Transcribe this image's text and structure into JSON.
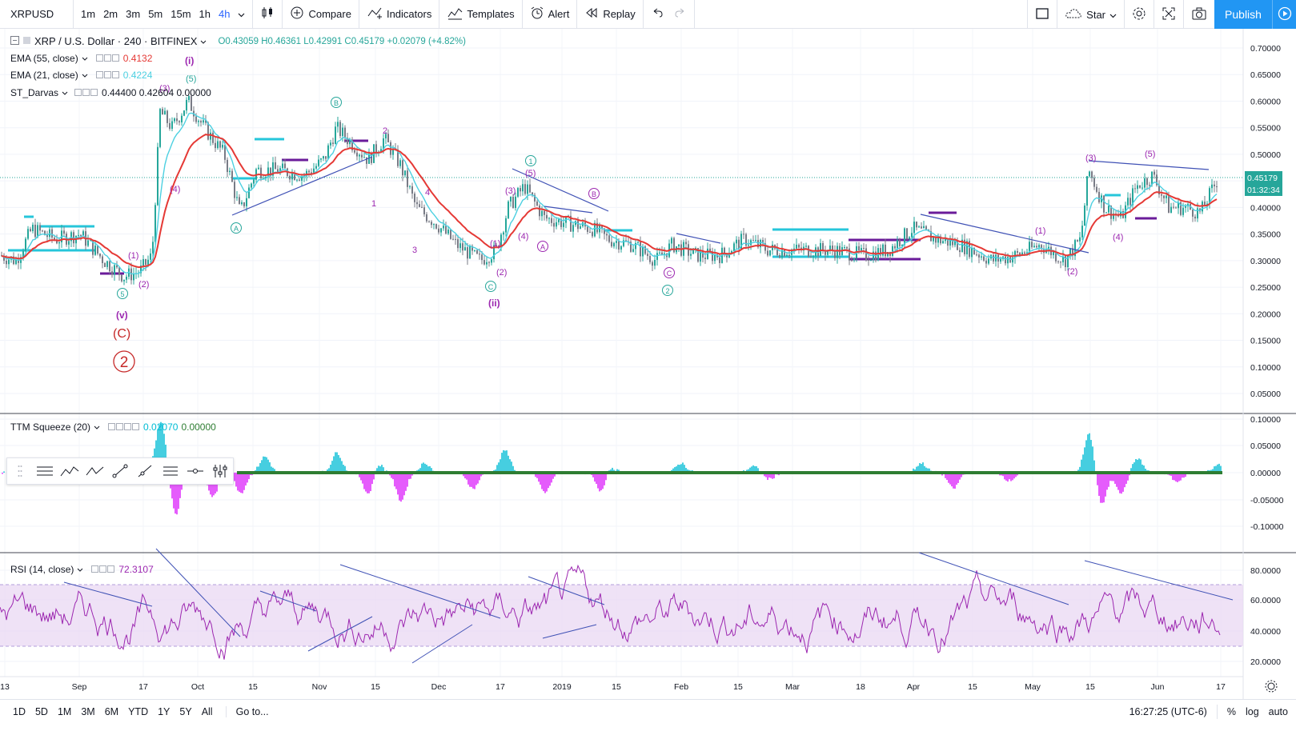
{
  "toolbar": {
    "symbol": "XRPUSD",
    "intervals": [
      "1m",
      "2m",
      "3m",
      "5m",
      "15m",
      "1h",
      "4h"
    ],
    "active_interval": "4h",
    "compare_label": "Compare",
    "indicators_label": "Indicators",
    "templates_label": "Templates",
    "alert_label": "Alert",
    "replay_label": "Replay",
    "star_label": "Star",
    "publish_label": "Publish"
  },
  "main_legend": {
    "title": "XRP / U.S. Dollar · 240 · BITFINEX",
    "ohlc": "O0.43059  H0.46361  L0.42991  C0.45179  +0.02079 (+4.82%)",
    "ema55_name": "EMA (55, close)",
    "ema55_value": "0.4132",
    "ema21_name": "EMA (21, close)",
    "ema21_value": "0.4224",
    "darvas_name": "ST_Darvas",
    "darvas_values": "0.44400  0.42604  0.00000"
  },
  "ttm_legend": {
    "name": "TTM Squeeze (20)",
    "v1": "0.02070",
    "v2": "0.00000"
  },
  "rsi_legend": {
    "name": "RSI (14, close)",
    "value": "72.3107"
  },
  "price_scale": [
    "0.70000",
    "0.65000",
    "0.60000",
    "0.55000",
    "0.50000",
    "0.45000",
    "0.40000",
    "0.35000",
    "0.30000",
    "0.25000",
    "0.20000",
    "0.15000",
    "0.10000",
    "0.05000"
  ],
  "price_tags": {
    "last": "0.45179",
    "countdown": "01:32:34"
  },
  "ttm_scale": [
    "0.10000",
    "0.05000",
    "0.00000",
    "-0.05000",
    "-0.10000"
  ],
  "rsi_scale": [
    "80.0000",
    "60.0000",
    "40.0000",
    "20.0000"
  ],
  "time_axis": [
    "13",
    "Sep",
    "17",
    "Oct",
    "15",
    "Nov",
    "15",
    "Dec",
    "17",
    "2019",
    "15",
    "Feb",
    "15",
    "Mar",
    "18",
    "Apr",
    "15",
    "May",
    "15",
    "Jun",
    "17"
  ],
  "wave_labels": {
    "i": "(i)",
    "ii": "(ii)",
    "v": "(v)",
    "C": "(C)",
    "two": "2",
    "five_a": "(5)",
    "B": "B",
    "A": "A",
    "C2": "C",
    "one": "1",
    "two_c": "2",
    "three": "(3)",
    "four": "(4)",
    "one_p": "(1)",
    "two_p": "(2)",
    "n2": "2",
    "n3": "3",
    "n4": "4",
    "n1": "1",
    "five_top": "(5)",
    "three_top": "(3)",
    "four_b": "(4)",
    "two_b": "(2)",
    "one_b": "(1)",
    "five_c": "5"
  },
  "bottom": {
    "ranges": [
      "1D",
      "5D",
      "1M",
      "3M",
      "6M",
      "YTD",
      "1Y",
      "5Y",
      "All"
    ],
    "goto": "Go to...",
    "time": "16:27:25 (UTC-6)",
    "pct": "%",
    "log": "log",
    "auto": "auto"
  },
  "colors": {
    "accent": "#2196f3",
    "ema55": "#e53935",
    "ema21": "#4dd0e1",
    "wave_purple": "#9c27b0",
    "wave_teal": "#26a69a",
    "rsi": "#9c27b0"
  }
}
